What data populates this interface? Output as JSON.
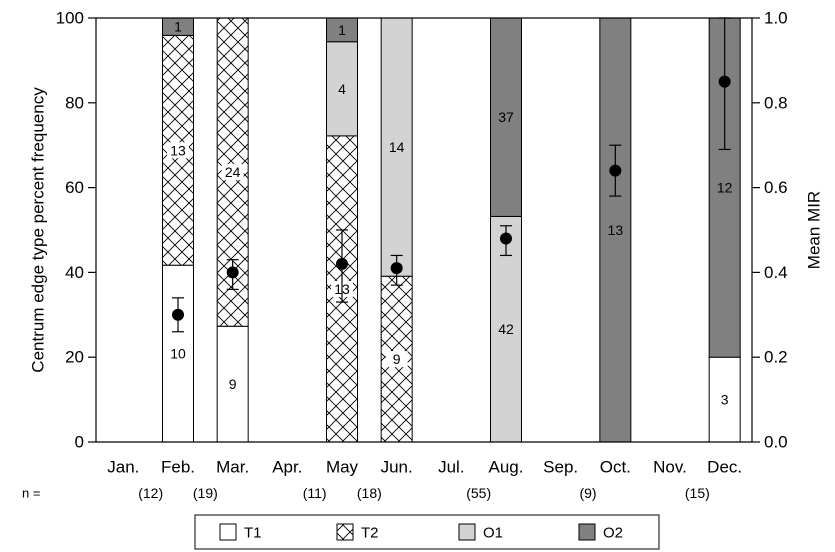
{
  "chart_data": {
    "type": "bar",
    "stacked": true,
    "categories": [
      "Jan.",
      "Feb.",
      "Mar.",
      "Apr.",
      "May",
      "Jun.",
      "Jul.",
      "Aug.",
      "Sep.",
      "Oct.",
      "Nov.",
      "Dec."
    ],
    "n_label": "n =",
    "n_values": [
      "",
      "(12)",
      "(19)",
      "",
      "(11)",
      "(18)",
      "",
      "(55)",
      "",
      "(9)",
      "",
      "(15)"
    ],
    "ylabel": "Centrum edge type percent frequency",
    "ylim": [
      0,
      100
    ],
    "yticks": [
      "0",
      "20",
      "40",
      "60",
      "80",
      "100"
    ],
    "y2label": "Mean MIR",
    "y2lim": [
      0,
      1.0
    ],
    "y2ticks": [
      "0.0",
      "0.2",
      "0.4",
      "0.6",
      "0.8",
      "1.0"
    ],
    "series": [
      {
        "name": "T1",
        "fill": "#ffffff",
        "pattern": "none",
        "values": [
          0,
          41.7,
          27.3,
          0,
          0,
          0,
          0,
          0,
          0,
          0,
          0,
          20.0
        ],
        "labels": [
          "",
          "10",
          "9",
          "",
          "",
          "",
          "",
          "",
          "",
          "",
          "",
          "3"
        ]
      },
      {
        "name": "T2",
        "fill": "#ffffff",
        "pattern": "crosshatch",
        "values": [
          0,
          54.2,
          72.7,
          0,
          72.2,
          39.1,
          0,
          0,
          0,
          0,
          0,
          0
        ],
        "labels": [
          "",
          "13",
          "24",
          "",
          "13",
          "9",
          "",
          "",
          "",
          "",
          "",
          ""
        ]
      },
      {
        "name": "O1",
        "fill": "#d3d3d3",
        "pattern": "none",
        "values": [
          0,
          0,
          0,
          0,
          22.2,
          60.9,
          0,
          53.2,
          0,
          0,
          0,
          0
        ],
        "labels": [
          "",
          "",
          "",
          "",
          "4",
          "14",
          "",
          "42",
          "",
          "",
          "",
          ""
        ]
      },
      {
        "name": "O2",
        "fill": "#808080",
        "pattern": "none",
        "values": [
          0,
          4.1,
          0,
          0,
          5.6,
          0,
          0,
          46.8,
          0,
          100,
          0,
          80.0
        ],
        "labels": [
          "",
          "1",
          "",
          "",
          "1",
          "",
          "",
          "37",
          "",
          "13",
          "",
          "12"
        ]
      }
    ],
    "mir": {
      "mean": [
        null,
        0.3,
        0.4,
        null,
        0.42,
        0.41,
        null,
        0.48,
        null,
        0.64,
        null,
        0.85
      ],
      "lower": [
        null,
        0.26,
        0.36,
        null,
        0.33,
        0.37,
        null,
        0.44,
        null,
        0.58,
        null,
        0.69
      ],
      "upper": [
        null,
        0.34,
        0.43,
        null,
        0.5,
        0.44,
        null,
        0.51,
        null,
        0.7,
        null,
        1.0
      ]
    },
    "legend_position": "bottom"
  }
}
